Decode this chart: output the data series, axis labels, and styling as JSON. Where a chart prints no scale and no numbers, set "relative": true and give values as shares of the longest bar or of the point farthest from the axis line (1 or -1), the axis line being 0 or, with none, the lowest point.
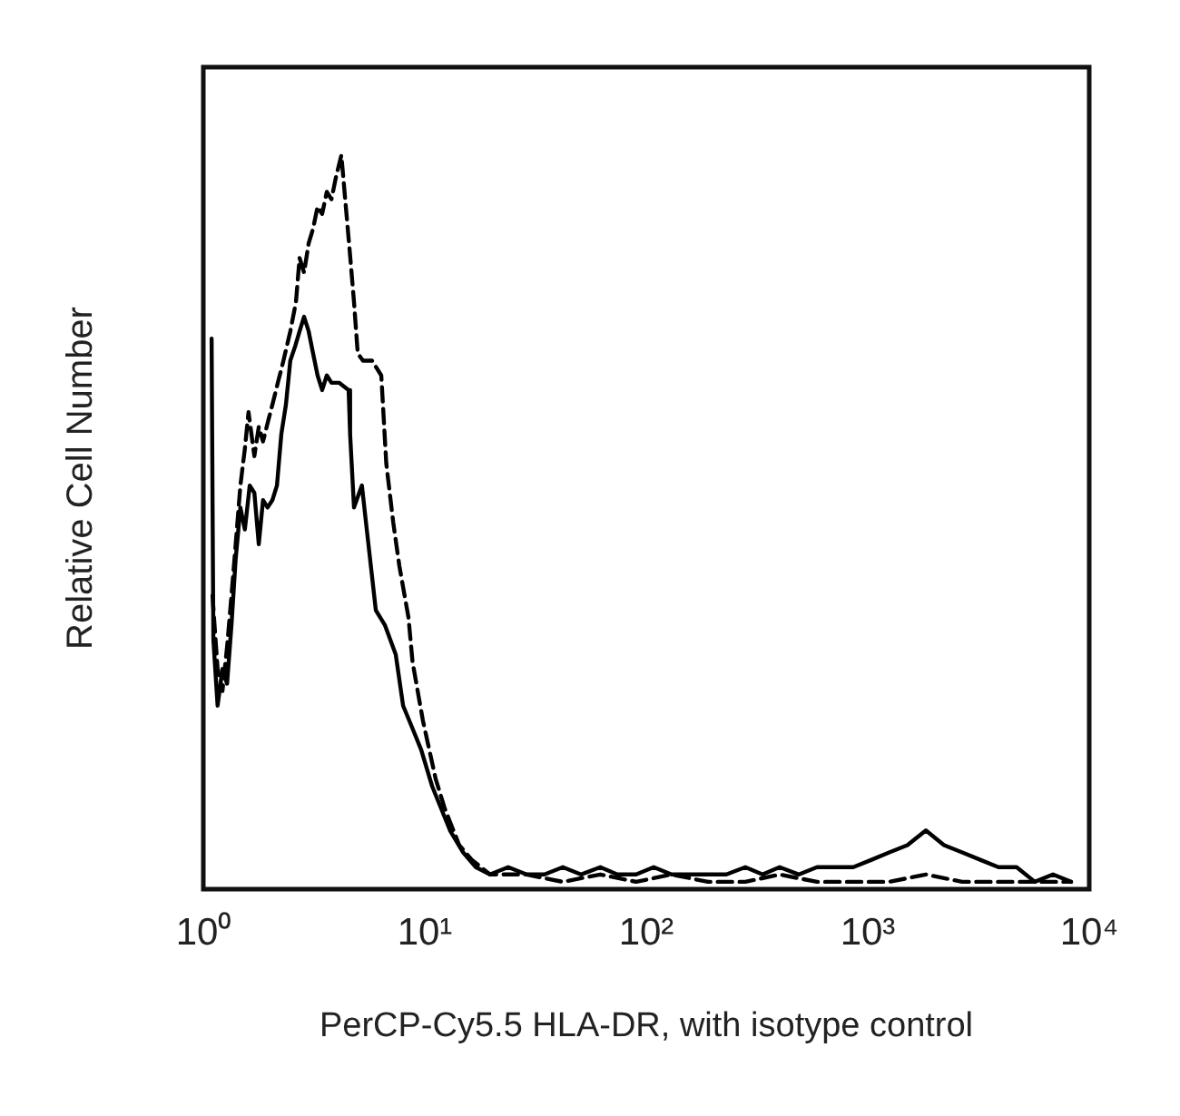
{
  "chart_data": {
    "type": "line",
    "xlabel": "PerCP-Cy5.5 HLA-DR, with isotype control",
    "ylabel": "Relative Cell Number",
    "relative": true,
    "log": "x",
    "xlim": [
      1,
      10000
    ],
    "xticks": [
      {
        "value": 1,
        "label": "10⁰"
      },
      {
        "value": 10,
        "label": "10¹"
      },
      {
        "value": 100,
        "label": "10²"
      },
      {
        "value": 1000,
        "label": "10³"
      },
      {
        "value": 10000,
        "label": "10⁴"
      }
    ],
    "tick_labels": "x",
    "grid": false,
    "legend": false,
    "marker": "none",
    "series": [
      {
        "color": "#000000",
        "line_style": "solid",
        "x": [
          1.09,
          1.11,
          1.16,
          1.22,
          1.28,
          1.34,
          1.4,
          1.47,
          1.54,
          1.62,
          1.7,
          1.78,
          1.86,
          1.95,
          2.05,
          2.15,
          2.25,
          2.36,
          2.47,
          2.6,
          2.72,
          2.85,
          2.99,
          3.13,
          3.28,
          3.44,
          3.61,
          3.79,
          4.1,
          4.53,
          4.6,
          4.79,
          5.2,
          5.47,
          6.01,
          6.6,
          7.39,
          7.98,
          8.77,
          9.63,
          10.8,
          13.0,
          14.9,
          17.0,
          19.7,
          23.8,
          28.8,
          34.7,
          42,
          50.7,
          62,
          74,
          90,
          108,
          130,
          157,
          190,
          230,
          280,
          335,
          400,
          489,
          590,
          712,
          860,
          1040,
          1250,
          1510,
          1830,
          2210,
          2670,
          3220,
          3890,
          4700,
          5680,
          6860,
          8280
        ],
        "values": [
          0.75,
          0.34,
          0.25,
          0.3,
          0.28,
          0.36,
          0.45,
          0.52,
          0.49,
          0.55,
          0.54,
          0.47,
          0.53,
          0.52,
          0.53,
          0.55,
          0.62,
          0.66,
          0.72,
          0.74,
          0.76,
          0.78,
          0.76,
          0.73,
          0.7,
          0.68,
          0.7,
          0.69,
          0.69,
          0.68,
          0.62,
          0.52,
          0.55,
          0.49,
          0.38,
          0.36,
          0.32,
          0.25,
          0.22,
          0.19,
          0.14,
          0.08,
          0.05,
          0.03,
          0.02,
          0.03,
          0.02,
          0.02,
          0.03,
          0.02,
          0.03,
          0.02,
          0.02,
          0.03,
          0.02,
          0.02,
          0.02,
          0.02,
          0.03,
          0.02,
          0.03,
          0.02,
          0.03,
          0.03,
          0.03,
          0.04,
          0.05,
          0.06,
          0.08,
          0.06,
          0.05,
          0.04,
          0.03,
          0.03,
          0.01,
          0.02,
          0.01
        ]
      },
      {
        "color": "#000000",
        "line_style": "dashed",
        "x": [
          1.1,
          1.16,
          1.22,
          1.28,
          1.34,
          1.4,
          1.47,
          1.54,
          1.6,
          1.7,
          1.78,
          1.86,
          1.97,
          2.05,
          2.17,
          2.3,
          2.47,
          2.62,
          2.72,
          2.85,
          2.99,
          3.13,
          3.28,
          3.44,
          3.61,
          3.79,
          3.97,
          4.2,
          4.4,
          4.61,
          4.79,
          4.98,
          5.26,
          5.78,
          6.36,
          6.7,
          7.2,
          7.68,
          8.44,
          8.8,
          9.8,
          11.2,
          12.3,
          14.3,
          16.3,
          19.7,
          23.8,
          28.8,
          42,
          62,
          90,
          130,
          190,
          280,
          400,
          590,
          860,
          1250,
          1830,
          2670,
          3890,
          5680,
          8280
        ],
        "values": [
          0.4,
          0.3,
          0.27,
          0.33,
          0.4,
          0.47,
          0.55,
          0.6,
          0.65,
          0.59,
          0.63,
          0.61,
          0.64,
          0.66,
          0.69,
          0.72,
          0.76,
          0.8,
          0.86,
          0.84,
          0.88,
          0.9,
          0.93,
          0.92,
          0.95,
          0.94,
          0.97,
          1,
          0.93,
          0.86,
          0.8,
          0.73,
          0.72,
          0.72,
          0.7,
          0.58,
          0.5,
          0.44,
          0.37,
          0.31,
          0.23,
          0.15,
          0.11,
          0.06,
          0.04,
          0.02,
          0.02,
          0.02,
          0.01,
          0.02,
          0.01,
          0.02,
          0.01,
          0.01,
          0.02,
          0.01,
          0.01,
          0.01,
          0.02,
          0.01,
          0.01,
          0.01,
          0.01
        ]
      }
    ]
  }
}
